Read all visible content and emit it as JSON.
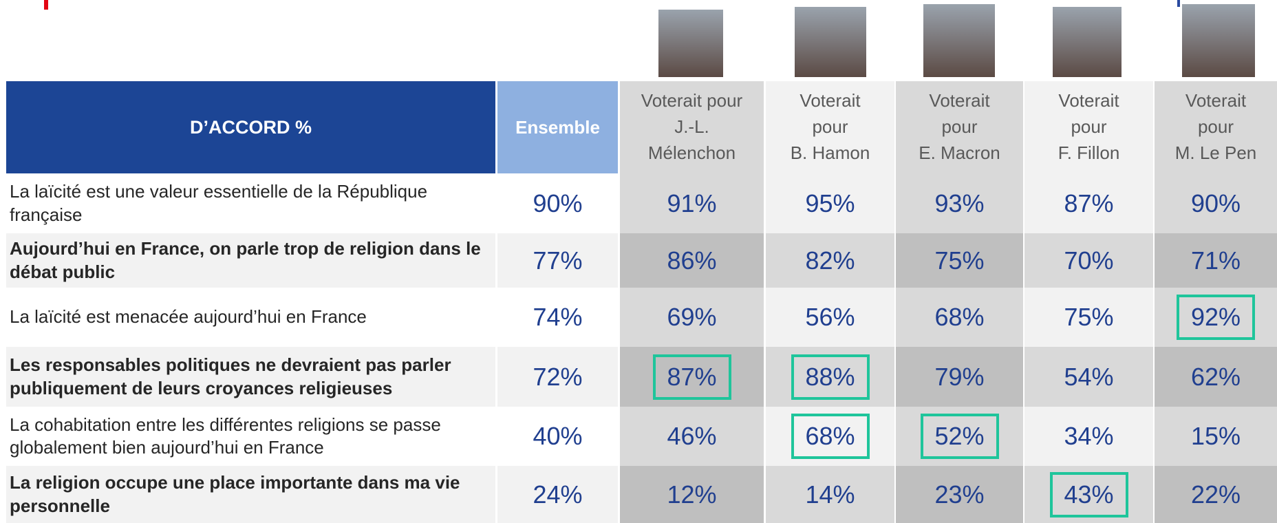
{
  "table": {
    "title": "D’ACCORD %",
    "columns": [
      "Ensemble",
      "Voterait pour\nJ.-L.\nMélenchon",
      "Voterait\npour\nB. Hamon",
      "Voterait\npour\nE. Macron",
      "Voterait\npour\nF. Fillon",
      "Voterait\npour\nM. Le Pen"
    ],
    "rows": [
      {
        "label": "La laïcité est une valeur essentielle de la République française",
        "bold": false,
        "values": [
          "90%",
          "91%",
          "95%",
          "93%",
          "87%",
          "90%"
        ],
        "highlight": []
      },
      {
        "label": "Aujourd’hui en France, on parle trop de religion dans le débat public",
        "bold": true,
        "values": [
          "77%",
          "86%",
          "82%",
          "75%",
          "70%",
          "71%"
        ],
        "highlight": []
      },
      {
        "label": "La laïcité est menacée aujourd’hui en France",
        "bold": false,
        "values": [
          "74%",
          "69%",
          "56%",
          "68%",
          "75%",
          "92%"
        ],
        "highlight": [
          5
        ]
      },
      {
        "label": "Les responsables politiques ne devraient pas parler publiquement de leurs croyances religieuses",
        "bold": true,
        "values": [
          "72%",
          "87%",
          "88%",
          "79%",
          "54%",
          "62%"
        ],
        "highlight": [
          1,
          2
        ]
      },
      {
        "label": "La cohabitation entre les différentes religions se passe globalement bien aujourd’hui en France",
        "bold": false,
        "values": [
          "40%",
          "46%",
          "68%",
          "52%",
          "34%",
          "15%"
        ],
        "highlight": [
          2,
          3
        ]
      },
      {
        "label": "La religion occupe une place importante dans ma vie personnelle",
        "bold": true,
        "values": [
          "24%",
          "12%",
          "14%",
          "23%",
          "43%",
          "22%"
        ],
        "highlight": [
          4
        ]
      }
    ]
  }
}
